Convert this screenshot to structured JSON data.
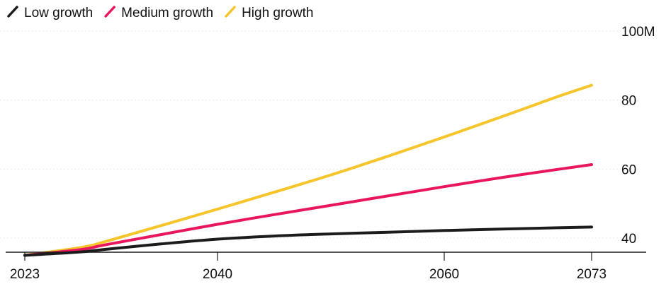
{
  "chart_data": {
    "type": "line",
    "title": "",
    "xlabel": "",
    "ylabel": "",
    "ylim": [
      35,
      100
    ],
    "xlim": [
      2023,
      2073
    ],
    "x": [
      2023,
      2028,
      2030,
      2035,
      2040,
      2045,
      2050,
      2055,
      2060,
      2065,
      2070,
      2073
    ],
    "series": [
      {
        "name": "Low growth",
        "color": "#1c1c1c",
        "values": [
          35.0,
          36.0,
          36.7,
          38.3,
          39.7,
          40.6,
          41.2,
          41.7,
          42.2,
          42.6,
          43.0,
          43.2
        ]
      },
      {
        "name": "Medium growth",
        "color": "#e8175d",
        "values": [
          35.0,
          36.7,
          38.0,
          41.0,
          44.0,
          46.8,
          49.5,
          52.2,
          54.9,
          57.5,
          59.9,
          61.3
        ]
      },
      {
        "name": "High growth",
        "color": "#f5c52b",
        "values": [
          35.0,
          37.3,
          38.9,
          43.6,
          48.4,
          53.3,
          58.3,
          63.7,
          69.3,
          75.1,
          81.0,
          84.3
        ]
      }
    ],
    "x_ticks": [
      {
        "value": 2023,
        "label": "2023"
      },
      {
        "value": 2040,
        "label": "2040"
      },
      {
        "value": 2060,
        "label": "2060"
      },
      {
        "value": 2073,
        "label": "2073"
      }
    ],
    "y_ticks": [
      {
        "value": 40,
        "label": "40"
      },
      {
        "value": 60,
        "label": "60"
      },
      {
        "value": 80,
        "label": "80"
      },
      {
        "value": 100,
        "label": "100M"
      }
    ],
    "grid": true,
    "legend": "top-left",
    "y_axis_side": "right"
  }
}
